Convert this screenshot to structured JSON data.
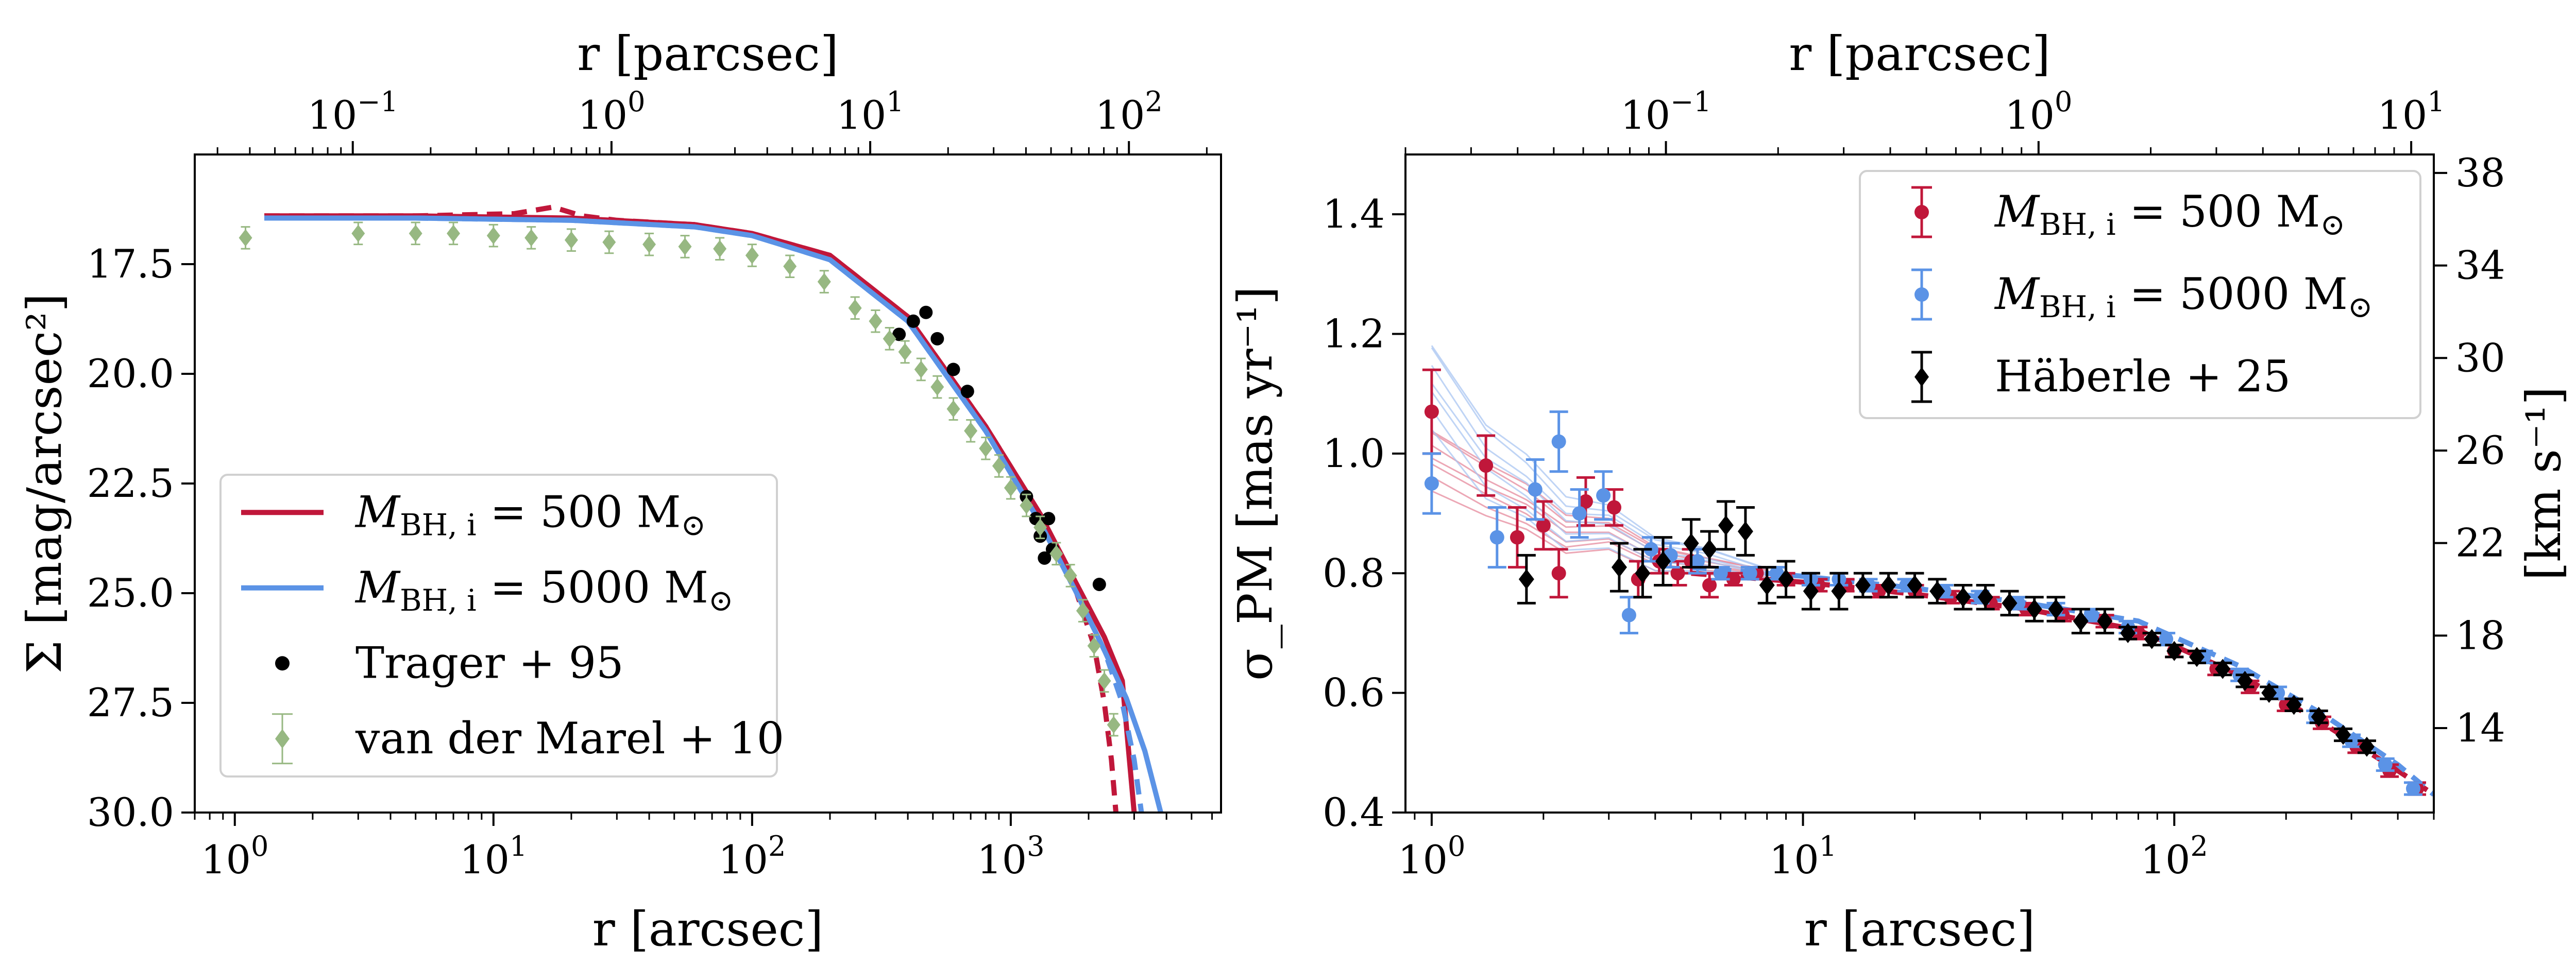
{
  "colors": {
    "red": "#c0173a",
    "blue": "#5b93e6",
    "black": "#000000",
    "green": "#97b882",
    "red_thin": "#e58a9c",
    "blue_thin": "#a9c6f2"
  },
  "chart_data": [
    {
      "type": "line",
      "xlabel": "r [arcsec]",
      "top_xlabel": "r [parcsec]",
      "ylabel": "Σ [mag/arcsec²]",
      "xscale": "log",
      "xlim": [
        0.7,
        6500
      ],
      "top_xlim": [
        0.0245,
        227
      ],
      "ylim": [
        30.0,
        15.0
      ],
      "y_inverted": true,
      "xticks": [
        1,
        10,
        100,
        1000
      ],
      "xtick_labels": [
        "10⁰",
        "10¹",
        "10²",
        "10³"
      ],
      "top_xticks": [
        0.1,
        1,
        10,
        100
      ],
      "top_xtick_labels": [
        "10⁻¹",
        "10⁰",
        "10¹",
        "10²"
      ],
      "yticks": [
        17.5,
        20.0,
        22.5,
        25.0,
        27.5,
        30.0
      ],
      "ytick_labels": [
        "17.5",
        "20.0",
        "22.5",
        "25.0",
        "27.5",
        "30.0"
      ],
      "legend_position": "lower-left",
      "legend": [
        {
          "label": "M",
          "sub": "BH, i",
          "rest": " = 500 M",
          "sun": "⊙",
          "marker": "line",
          "color": "red"
        },
        {
          "label": "M",
          "sub": "BH, i",
          "rest": " = 5000 M",
          "sun": "⊙",
          "marker": "line",
          "color": "blue"
        },
        {
          "label": "Trager + 95",
          "marker": "dot",
          "color": "black"
        },
        {
          "label": "van der Marel + 10",
          "marker": "errdiamond",
          "color": "green"
        }
      ],
      "series": [
        {
          "name": "M_BH,i = 500 M⊙",
          "color": "red",
          "style": "solid",
          "x": [
            1.3,
            5,
            20,
            60,
            100,
            200,
            400,
            800,
            1300,
            1800,
            2300,
            2700,
            3000
          ],
          "y": [
            16.4,
            16.4,
            16.45,
            16.6,
            16.8,
            17.3,
            18.7,
            21.2,
            23.2,
            24.8,
            26.0,
            27.0,
            30.0
          ]
        },
        {
          "name": "M_BH,i = 500 M⊙ (dashed)",
          "color": "red",
          "style": "dashed",
          "x": [
            1.3,
            5,
            12,
            17,
            22,
            30,
            60,
            100,
            200,
            400,
            800,
            1300,
            1800,
            2100,
            2300,
            2450,
            2550
          ],
          "y": [
            16.4,
            16.4,
            16.35,
            16.2,
            16.4,
            16.5,
            16.6,
            16.8,
            17.3,
            18.7,
            21.2,
            23.2,
            25.0,
            26.2,
            27.5,
            28.8,
            30.0
          ]
        },
        {
          "name": "M_BH,i = 5000 M⊙",
          "color": "blue",
          "style": "solid",
          "x": [
            1.3,
            5,
            20,
            60,
            100,
            200,
            400,
            800,
            1300,
            1800,
            2300,
            2800,
            3300,
            3800
          ],
          "y": [
            16.45,
            16.45,
            16.5,
            16.65,
            16.85,
            17.4,
            18.8,
            21.3,
            23.4,
            25.0,
            26.3,
            27.4,
            28.6,
            30.0
          ]
        },
        {
          "name": "M_BH,i = 5000 M⊙ (dashed)",
          "color": "blue",
          "style": "dashed",
          "x": [
            1.3,
            5,
            20,
            60,
            100,
            200,
            400,
            800,
            1300,
            1800,
            2300,
            2700,
            3000,
            3200
          ],
          "y": [
            16.45,
            16.45,
            16.5,
            16.65,
            16.85,
            17.4,
            18.8,
            21.3,
            23.4,
            25.0,
            26.3,
            27.5,
            28.8,
            30.0
          ]
        },
        {
          "name": "Trager + 95",
          "color": "black",
          "marker": "dot",
          "x": [
            370,
            420,
            470,
            520,
            600,
            680,
            1150,
            1250,
            1300,
            1400,
            1350,
            1450,
            2200
          ],
          "y": [
            19.1,
            18.8,
            18.6,
            19.2,
            19.9,
            20.4,
            22.8,
            23.3,
            23.7,
            23.3,
            24.2,
            24.0,
            24.8
          ]
        },
        {
          "name": "van der Marel + 10",
          "color": "green",
          "marker": "errdiamond",
          "x": [
            1.1,
            3,
            5,
            7,
            10,
            14,
            20,
            28,
            40,
            55,
            75,
            100,
            140,
            190,
            250,
            300,
            340,
            390,
            450,
            520,
            600,
            700,
            800,
            900,
            1000,
            1150,
            1300,
            1500,
            1700,
            1900,
            2100,
            2300,
            2500
          ],
          "y": [
            16.9,
            16.8,
            16.8,
            16.8,
            16.85,
            16.9,
            16.95,
            17.0,
            17.05,
            17.1,
            17.15,
            17.3,
            17.55,
            17.9,
            18.5,
            18.8,
            19.2,
            19.5,
            19.9,
            20.3,
            20.8,
            21.3,
            21.7,
            22.1,
            22.6,
            23.0,
            23.5,
            24.1,
            24.6,
            25.4,
            26.2,
            27.0,
            28.0
          ],
          "yerr": 0.25
        }
      ]
    },
    {
      "type": "scatter",
      "xlabel": "r [arcsec]",
      "top_xlabel": "r [parcsec]",
      "ylabel": "σ_PM [mas yr⁻¹]",
      "right_ylabel": "[km s⁻¹]",
      "xscale": "log",
      "xlim": [
        0.85,
        500
      ],
      "top_xlim": [
        0.02,
        11.5
      ],
      "ylim": [
        0.4,
        1.5
      ],
      "xticks": [
        1,
        10,
        100
      ],
      "xtick_labels": [
        "10⁰",
        "10¹",
        "10²"
      ],
      "top_xticks": [
        0.1,
        1,
        10
      ],
      "top_xtick_labels": [
        "10⁻¹",
        "10⁰",
        "10¹"
      ],
      "yticks": [
        0.4,
        0.6,
        0.8,
        1.0,
        1.2,
        1.4
      ],
      "ytick_labels": [
        "0.4",
        "0.6",
        "0.8",
        "1.0",
        "1.2",
        "1.4"
      ],
      "right_ylim": [
        10.35,
        38.8
      ],
      "right_yticks": [
        14,
        18,
        22,
        26,
        30,
        34,
        38
      ],
      "right_ytick_labels": [
        "14",
        "18",
        "22",
        "26",
        "30",
        "34",
        "38"
      ],
      "legend_position": "top-right",
      "legend": [
        {
          "label": "M",
          "sub": "BH, i",
          "rest": " = 500 M",
          "sun": "⊙",
          "marker": "errdot",
          "color": "red"
        },
        {
          "label": "M",
          "sub": "BH, i",
          "rest": " = 5000 M",
          "sun": "⊙",
          "marker": "errdot",
          "color": "blue"
        },
        {
          "label": "Häberle + 25",
          "marker": "errdiamond",
          "color": "black"
        }
      ],
      "series": [
        {
          "name": "M_BH,i = 500 M⊙ (thin model curves)",
          "color": "red_thin",
          "style": "thin-lines",
          "x": [
            1.0,
            1.4,
            1.8,
            2.3,
            3.0,
            4.0,
            5.5,
            8
          ],
          "y": [
            0.98,
            0.95,
            0.9,
            0.87,
            0.86,
            0.83,
            0.81,
            0.8
          ],
          "spread": 0.05
        },
        {
          "name": "M_BH,i = 5000 M⊙ (thin model curves)",
          "color": "blue_thin",
          "style": "thin-lines",
          "x": [
            1.0,
            1.4,
            1.8,
            2.3,
            3.0,
            4.0,
            5.5,
            8
          ],
          "y": [
            1.1,
            1.0,
            0.93,
            0.89,
            0.87,
            0.84,
            0.82,
            0.8
          ],
          "spread": 0.07
        },
        {
          "name": "M_BH,i = 500 M⊙ (dashed)",
          "color": "red",
          "style": "dashed",
          "x": [
            5,
            10,
            20,
            40,
            80,
            150,
            250,
            400,
            500
          ],
          "y": [
            0.8,
            0.785,
            0.765,
            0.74,
            0.705,
            0.63,
            0.55,
            0.47,
            0.43
          ]
        },
        {
          "name": "M_BH,i = 5000 M⊙ (dashed)",
          "color": "blue",
          "style": "dashed",
          "x": [
            5,
            10,
            20,
            40,
            80,
            150,
            250,
            400,
            500
          ],
          "y": [
            0.81,
            0.795,
            0.775,
            0.75,
            0.72,
            0.645,
            0.565,
            0.48,
            0.43
          ]
        },
        {
          "name": "M_BH,i = 500 M⊙",
          "color": "red",
          "marker": "errdot",
          "x": [
            1.0,
            1.4,
            1.7,
            2.0,
            2.2,
            2.6,
            3.1,
            3.6,
            4.1,
            4.6,
            5.0,
            5.6,
            6.5,
            7.5,
            9,
            11,
            13,
            16,
            20,
            25,
            32,
            40,
            50,
            65,
            80,
            100,
            130,
            160,
            200,
            250,
            310,
            380,
            450
          ],
          "y": [
            1.07,
            0.98,
            0.86,
            0.88,
            0.8,
            0.92,
            0.91,
            0.79,
            0.82,
            0.8,
            0.82,
            0.78,
            0.79,
            0.8,
            0.79,
            0.78,
            0.78,
            0.77,
            0.77,
            0.76,
            0.75,
            0.74,
            0.73,
            0.72,
            0.7,
            0.67,
            0.64,
            0.61,
            0.58,
            0.55,
            0.51,
            0.47,
            0.44
          ],
          "yerr": [
            0.07,
            0.05,
            0.05,
            0.04,
            0.04,
            0.04,
            0.03,
            0.03,
            0.02,
            0.02,
            0.02,
            0.02,
            0.01,
            0.01,
            0.01,
            0.01,
            0.01,
            0.01,
            0.01,
            0.01,
            0.01,
            0.01,
            0.01,
            0.01,
            0.01,
            0.01,
            0.01,
            0.01,
            0.01,
            0.01,
            0.01,
            0.01,
            0.01
          ]
        },
        {
          "name": "M_BH,i = 5000 M⊙",
          "color": "blue",
          "marker": "errdot",
          "x": [
            1.0,
            1.5,
            1.9,
            2.2,
            2.5,
            2.9,
            3.4,
            3.9,
            4.4,
            5.2,
            6.0,
            7.2,
            8.5,
            10.5,
            12.5,
            15,
            19,
            24,
            30,
            38,
            48,
            60,
            75,
            95,
            120,
            150,
            190,
            240,
            300,
            370,
            440
          ],
          "y": [
            0.95,
            0.86,
            0.94,
            1.02,
            0.9,
            0.93,
            0.73,
            0.84,
            0.83,
            0.82,
            0.8,
            0.8,
            0.8,
            0.79,
            0.79,
            0.78,
            0.78,
            0.77,
            0.76,
            0.75,
            0.74,
            0.73,
            0.71,
            0.69,
            0.66,
            0.63,
            0.6,
            0.56,
            0.52,
            0.48,
            0.44
          ],
          "yerr": [
            0.05,
            0.05,
            0.05,
            0.05,
            0.04,
            0.04,
            0.03,
            0.02,
            0.02,
            0.02,
            0.01,
            0.01,
            0.01,
            0.01,
            0.01,
            0.01,
            0.01,
            0.01,
            0.01,
            0.01,
            0.01,
            0.01,
            0.01,
            0.01,
            0.01,
            0.01,
            0.01,
            0.01,
            0.01,
            0.01,
            0.01
          ]
        },
        {
          "name": "Häberle + 25",
          "color": "black",
          "marker": "errdiamond",
          "x": [
            1.8,
            3.2,
            3.7,
            4.2,
            5.0,
            5.6,
            6.2,
            7.0,
            8.0,
            9.0,
            10.5,
            12.5,
            14.5,
            17,
            20,
            23,
            27,
            31,
            36,
            42,
            48,
            56,
            65,
            75,
            87,
            100,
            115,
            135,
            155,
            180,
            210,
            245,
            285,
            330
          ],
          "y": [
            0.79,
            0.81,
            0.8,
            0.82,
            0.85,
            0.84,
            0.88,
            0.87,
            0.78,
            0.79,
            0.77,
            0.77,
            0.78,
            0.78,
            0.78,
            0.77,
            0.76,
            0.76,
            0.75,
            0.74,
            0.74,
            0.72,
            0.72,
            0.7,
            0.69,
            0.67,
            0.66,
            0.64,
            0.62,
            0.6,
            0.58,
            0.56,
            0.53,
            0.51
          ],
          "yerr": [
            0.04,
            0.04,
            0.04,
            0.04,
            0.04,
            0.03,
            0.04,
            0.04,
            0.03,
            0.03,
            0.03,
            0.03,
            0.02,
            0.02,
            0.02,
            0.02,
            0.02,
            0.02,
            0.02,
            0.02,
            0.02,
            0.02,
            0.02,
            0.01,
            0.01,
            0.01,
            0.01,
            0.01,
            0.01,
            0.01,
            0.01,
            0.01,
            0.01,
            0.01
          ]
        }
      ]
    }
  ]
}
